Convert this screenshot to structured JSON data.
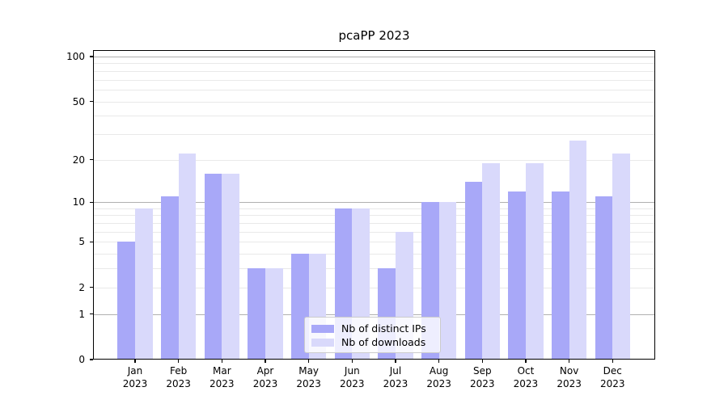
{
  "chart_data": {
    "type": "bar",
    "title": "pcaPP 2023",
    "categories": [
      "Jan",
      "Feb",
      "Mar",
      "Apr",
      "May",
      "Jun",
      "Jul",
      "Aug",
      "Sep",
      "Oct",
      "Nov",
      "Dec"
    ],
    "x_year": "2023",
    "series": [
      {
        "name": "Nb of distinct IPs",
        "color": "#a8a8f8",
        "values": [
          5,
          11,
          16,
          3,
          4,
          9,
          3,
          10,
          14,
          12,
          12,
          11
        ]
      },
      {
        "name": "Nb of downloads",
        "color": "#d9d9fb",
        "values": [
          9,
          22,
          16,
          3,
          4,
          9,
          6,
          10,
          19,
          19,
          27,
          22
        ]
      }
    ],
    "yscale": "log10(1+x)",
    "ylim": [
      0,
      110
    ],
    "yticks": [
      0,
      1,
      2,
      5,
      10,
      20,
      50,
      100
    ],
    "grid": {
      "major_values": [
        1,
        10,
        100
      ],
      "minor_values": [
        2,
        3,
        4,
        5,
        6,
        7,
        8,
        9,
        20,
        30,
        40,
        50,
        60,
        70,
        80,
        90
      ],
      "major_color": "#b0b0b0",
      "minor_color": "#e9e9e9"
    },
    "legend_position": "lower center",
    "axis_color": "#000000",
    "background_color": "#ffffff"
  }
}
